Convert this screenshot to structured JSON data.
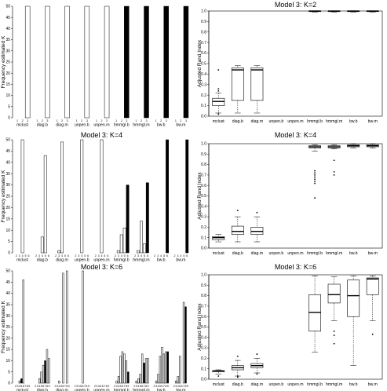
{
  "chart_data": [
    {
      "type": "bar",
      "title": "",
      "ylabel": "Frequency estimated K",
      "ylim": [
        0,
        50
      ],
      "yticks": [
        0,
        5,
        10,
        15,
        20,
        25,
        30,
        35,
        40,
        45,
        50
      ],
      "k_labels": [
        "1",
        "2",
        "3"
      ],
      "groups": [
        {
          "name": "mclust",
          "values": [
            0,
            0,
            50
          ],
          "filled": false
        },
        {
          "name": "diag.b",
          "values": [
            0,
            0,
            50
          ],
          "filled": false
        },
        {
          "name": "diag.m",
          "values": [
            0,
            0,
            50
          ],
          "filled": false
        },
        {
          "name": "unpen.b",
          "values": [
            0,
            0,
            50
          ],
          "filled": false
        },
        {
          "name": "unpen.m",
          "values": [
            0,
            0,
            50
          ],
          "filled": false
        },
        {
          "name": "hmmgl.b",
          "values": [
            0,
            0,
            50
          ],
          "filled": true
        },
        {
          "name": "hmmgl.m",
          "values": [
            0,
            0,
            50
          ],
          "filled": true
        },
        {
          "name": "bw.b",
          "values": [
            0,
            0,
            50
          ],
          "filled": true
        },
        {
          "name": "bw.m",
          "values": [
            0,
            0,
            50
          ],
          "filled": true
        }
      ]
    },
    {
      "type": "box",
      "title": "Model 3: K=2",
      "ylabel": "Adjusted Rand Index",
      "ylim": [
        0,
        1
      ],
      "yticks": [
        "0.0",
        "0.1",
        "0.2",
        "0.3",
        "0.4",
        "0.5",
        "0.6",
        "0.7",
        "0.8",
        "0.9",
        "1.0"
      ],
      "categories": [
        "mclust",
        "diag.b",
        "diag.m",
        "unpen.b",
        "unpen.m",
        "hmmgl.b",
        "hmmgl.m",
        "bw.b",
        "bw.m"
      ],
      "boxes": [
        {
          "min": 0.03,
          "q1": 0.1,
          "med": 0.14,
          "q3": 0.17,
          "max": 0.22,
          "out": [
            0.44,
            0.26,
            0.24,
            0.02
          ]
        },
        {
          "min": 0.03,
          "q1": 0.15,
          "med": 0.44,
          "q3": 0.46,
          "max": 0.48,
          "out": []
        },
        {
          "min": 0.03,
          "q1": 0.15,
          "med": 0.44,
          "q3": 0.46,
          "max": 0.48,
          "out": []
        },
        null,
        null,
        {
          "min": 0.99,
          "q1": 0.995,
          "med": 1.0,
          "q3": 1.0,
          "max": 1.0,
          "out": []
        },
        {
          "min": 0.99,
          "q1": 0.995,
          "med": 1.0,
          "q3": 1.0,
          "max": 1.0,
          "out": []
        },
        {
          "min": 0.99,
          "q1": 0.995,
          "med": 1.0,
          "q3": 1.0,
          "max": 1.0,
          "out": []
        },
        {
          "min": 0.99,
          "q1": 0.995,
          "med": 1.0,
          "q3": 1.0,
          "max": 1.0,
          "out": []
        }
      ]
    },
    {
      "type": "bar",
      "title": "Model 3: K=4",
      "ylabel": "Frequency estimated K",
      "ylim": [
        0,
        50
      ],
      "yticks": [
        0,
        5,
        10,
        15,
        20,
        25,
        30,
        35,
        40,
        45,
        50
      ],
      "k_labels": [
        "2",
        "3",
        "4",
        "5",
        "6"
      ],
      "groups": [
        {
          "name": "mclust",
          "values": [
            0,
            0,
            50,
            0,
            0
          ],
          "filled": false
        },
        {
          "name": "diag.b",
          "values": [
            0,
            0,
            7,
            43,
            0
          ],
          "filled": false
        },
        {
          "name": "diag.m",
          "values": [
            0,
            1,
            49,
            0,
            0
          ],
          "filled": false
        },
        {
          "name": "unpen.b",
          "values": [
            0,
            0,
            50,
            0,
            0
          ],
          "filled": false
        },
        {
          "name": "unpen.m",
          "values": [
            0,
            0,
            50,
            0,
            0
          ],
          "filled": false
        },
        {
          "name": "hmmgl.b",
          "values": [
            0,
            1,
            8,
            11,
            30
          ],
          "filled_index": 4
        },
        {
          "name": "hmmgl.m",
          "values": [
            0,
            1,
            14,
            4,
            31
          ],
          "filled_index": 4
        },
        {
          "name": "bw.b",
          "values": [
            0,
            0,
            0,
            0,
            50
          ],
          "filled_index": 4
        },
        {
          "name": "bw.m",
          "values": [
            0,
            0,
            0,
            0,
            50
          ],
          "filled_index": 4
        }
      ]
    },
    {
      "type": "box",
      "title": "Model 3: K=4",
      "ylabel": "Adjusted Rand Index",
      "ylim": [
        0,
        1
      ],
      "yticks": [
        "0.0",
        "0.1",
        "0.2",
        "0.3",
        "0.4",
        "0.5",
        "0.6",
        "0.7",
        "0.8",
        "0.9",
        "1.0"
      ],
      "categories": [
        "mclust",
        "diag.b",
        "diag.m",
        "unpen.b",
        "unpen.m",
        "hmmgl.b",
        "hmmgl.m",
        "bw.b",
        "bw.m"
      ],
      "boxes": [
        {
          "min": 0.06,
          "q1": 0.08,
          "med": 0.1,
          "q3": 0.11,
          "max": 0.13,
          "out": []
        },
        {
          "min": 0.06,
          "q1": 0.13,
          "med": 0.16,
          "q3": 0.21,
          "max": 0.3,
          "out": [
            0.36
          ]
        },
        {
          "min": 0.06,
          "q1": 0.13,
          "med": 0.16,
          "q3": 0.2,
          "max": 0.3,
          "out": [
            0.34
          ]
        },
        null,
        null,
        {
          "min": 0.93,
          "q1": 0.96,
          "med": 0.97,
          "q3": 0.98,
          "max": 0.99,
          "out": [
            0.74,
            0.72,
            0.7,
            0.68,
            0.66,
            0.64,
            0.62,
            0.48
          ]
        },
        {
          "min": 0.95,
          "q1": 0.96,
          "med": 0.97,
          "q3": 0.98,
          "max": 0.99,
          "out": [
            0.84,
            0.73,
            0.7
          ]
        },
        {
          "min": 0.96,
          "q1": 0.97,
          "med": 0.98,
          "q3": 0.99,
          "max": 1.0,
          "out": []
        },
        {
          "min": 0.96,
          "q1": 0.97,
          "med": 0.98,
          "q3": 0.99,
          "max": 1.0,
          "out": []
        }
      ]
    },
    {
      "type": "bar",
      "title": "Model 3: K=6",
      "ylabel": "Frequency estimated K",
      "ylim": [
        0,
        50
      ],
      "yticks": [
        0,
        5,
        10,
        15,
        20,
        25,
        30,
        35,
        40,
        45,
        50
      ],
      "k_labels": [
        "2",
        "3",
        "4",
        "5",
        "6",
        "7",
        "8",
        "9"
      ],
      "groups": [
        {
          "name": "mclust",
          "values": [
            0,
            0,
            1,
            2,
            46,
            0,
            0,
            0
          ],
          "filled_index": 3
        },
        {
          "name": "diag.b",
          "values": [
            0,
            0,
            2,
            5,
            8,
            10,
            15,
            11
          ],
          "filled_index": 5
        },
        {
          "name": "diag.m",
          "values": [
            0,
            0,
            1,
            0,
            49,
            0,
            50,
            0
          ],
          "filled_index": 3
        },
        {
          "name": "unpen.b",
          "values": [
            0,
            0,
            0,
            0,
            50,
            0,
            0,
            0
          ],
          "filled": false
        },
        {
          "name": "unpen.m",
          "values": [
            0,
            0,
            0,
            0,
            0,
            0,
            0,
            0
          ],
          "filled": false
        },
        {
          "name": "hmmgl.b",
          "values": [
            0,
            1,
            3,
            12,
            14,
            13,
            10,
            5
          ],
          "filled_index": 7
        },
        {
          "name": "hmmgl.m",
          "values": [
            0,
            1,
            2,
            4,
            13,
            9,
            11,
            11
          ],
          "filled_index": 5
        },
        {
          "name": "bw.b",
          "values": [
            0,
            1,
            4,
            12,
            16,
            13,
            14,
            14
          ],
          "filled_index": 7
        },
        {
          "name": "bw.m",
          "values": [
            0,
            1,
            3,
            12,
            0,
            36,
            34,
            0
          ],
          "filled_index": 6
        }
      ]
    },
    {
      "type": "box",
      "title": "Model 3: K=6",
      "ylabel": "Adjusted Rand Index",
      "ylim": [
        0,
        1
      ],
      "yticks": [
        "0.0",
        "0.1",
        "0.2",
        "0.3",
        "0.4",
        "0.5",
        "0.6",
        "0.7",
        "0.8",
        "0.9",
        "1.0"
      ],
      "categories": [
        "mclust",
        "diag.b",
        "diag.m",
        "unpen.b",
        "unpen.m",
        "hmmgl.b",
        "hmmgl.m",
        "bw.b",
        "bw.m"
      ],
      "boxes": [
        {
          "min": 0.05,
          "q1": 0.07,
          "med": 0.08,
          "q3": 0.08,
          "max": 0.09,
          "out": [
            0.03
          ]
        },
        {
          "min": 0.03,
          "q1": 0.09,
          "med": 0.11,
          "q3": 0.13,
          "max": 0.18,
          "out": [
            0.22,
            0.03,
            0.02
          ]
        },
        {
          "min": 0.06,
          "q1": 0.11,
          "med": 0.13,
          "q3": 0.15,
          "max": 0.2,
          "out": [
            0.24,
            0.05
          ]
        },
        null,
        null,
        {
          "min": 0.26,
          "q1": 0.46,
          "med": 0.64,
          "q3": 0.81,
          "max": 0.99,
          "out": []
        },
        {
          "min": 0.56,
          "q1": 0.73,
          "med": 0.81,
          "q3": 0.91,
          "max": 0.98,
          "out": [
            0.46,
            0.42,
            0.34
          ]
        },
        {
          "min": 0.13,
          "q1": 0.6,
          "med": 0.8,
          "q3": 0.95,
          "max": 0.99,
          "out": []
        },
        {
          "min": 0.56,
          "q1": 0.81,
          "med": 0.96,
          "q3": 0.97,
          "max": 0.99,
          "out": [
            0.43
          ]
        }
      ]
    }
  ]
}
